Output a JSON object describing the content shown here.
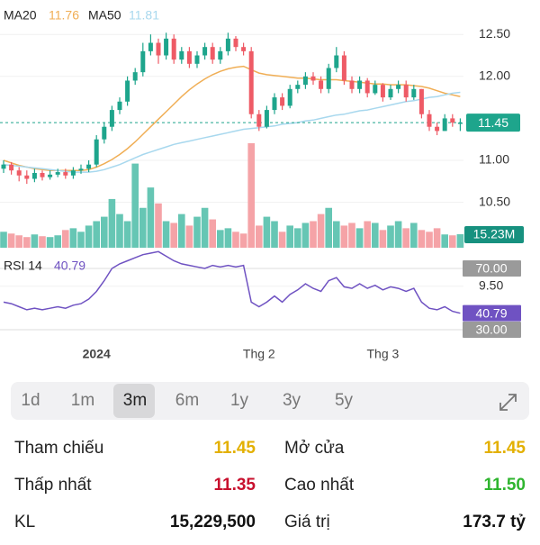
{
  "legend": {
    "ma20_name": "MA20",
    "ma50_name": "MA50",
    "rsi_name": "RSI 14"
  },
  "chart_data": [
    {
      "type": "candlestick",
      "categories": [
        null,
        null,
        null,
        null,
        null,
        null,
        null,
        null,
        null,
        null,
        null,
        null,
        "2024",
        null,
        null,
        null,
        null,
        null,
        null,
        null,
        null,
        null,
        null,
        null,
        null,
        null,
        null,
        null,
        null,
        null,
        null,
        null,
        null,
        "Thg 2",
        null,
        null,
        null,
        null,
        null,
        null,
        null,
        null,
        null,
        null,
        null,
        null,
        null,
        null,
        null,
        "Thg 3",
        null,
        null,
        null,
        null,
        null,
        null,
        null,
        null,
        null,
        null
      ],
      "open": [
        10.9,
        10.95,
        10.88,
        10.82,
        10.78,
        10.85,
        10.8,
        10.83,
        10.86,
        10.82,
        10.88,
        10.9,
        10.95,
        11.25,
        11.4,
        11.6,
        11.7,
        11.95,
        12.05,
        12.3,
        12.4,
        12.25,
        12.45,
        12.2,
        12.3,
        12.15,
        12.25,
        12.35,
        12.2,
        12.3,
        12.45,
        12.35,
        12.3,
        11.55,
        11.4,
        11.6,
        11.75,
        11.65,
        11.85,
        11.9,
        12.0,
        11.95,
        11.85,
        12.1,
        12.25,
        11.95,
        11.85,
        11.95,
        11.8,
        11.9,
        11.75,
        11.85,
        11.9,
        11.75,
        11.85,
        11.55,
        11.4,
        11.35,
        11.5,
        11.45
      ],
      "high": [
        11.0,
        10.98,
        10.92,
        10.88,
        10.9,
        10.88,
        10.88,
        10.9,
        10.9,
        10.92,
        10.95,
        11.0,
        11.3,
        11.45,
        11.65,
        11.75,
        12.0,
        12.1,
        12.4,
        12.5,
        12.45,
        12.52,
        12.5,
        12.35,
        12.35,
        12.3,
        12.4,
        12.4,
        12.35,
        12.52,
        12.48,
        12.4,
        12.35,
        11.6,
        11.65,
        11.8,
        11.8,
        11.9,
        11.95,
        12.05,
        12.05,
        12.0,
        12.15,
        12.35,
        12.3,
        12.0,
        12.0,
        11.98,
        11.95,
        11.92,
        11.9,
        11.95,
        11.95,
        11.9,
        11.85,
        11.6,
        11.45,
        11.55,
        11.55,
        11.5
      ],
      "low": [
        10.85,
        10.83,
        10.75,
        10.72,
        10.74,
        10.76,
        10.77,
        10.8,
        10.78,
        10.78,
        10.84,
        10.86,
        10.92,
        11.2,
        11.35,
        11.55,
        11.65,
        11.9,
        12.0,
        12.25,
        12.15,
        12.2,
        12.15,
        12.15,
        12.1,
        12.1,
        12.2,
        12.15,
        12.15,
        12.25,
        12.3,
        12.25,
        11.5,
        11.35,
        11.38,
        11.55,
        11.6,
        11.62,
        11.8,
        11.85,
        11.9,
        11.8,
        11.8,
        12.05,
        11.9,
        11.8,
        11.8,
        11.75,
        11.78,
        11.7,
        11.72,
        11.8,
        11.7,
        11.72,
        11.5,
        11.35,
        11.3,
        11.35,
        11.4,
        11.35
      ],
      "close": [
        10.95,
        10.88,
        10.82,
        10.78,
        10.85,
        10.8,
        10.83,
        10.86,
        10.82,
        10.88,
        10.9,
        10.95,
        11.25,
        11.4,
        11.6,
        11.7,
        11.95,
        12.05,
        12.3,
        12.4,
        12.25,
        12.45,
        12.2,
        12.3,
        12.15,
        12.25,
        12.35,
        12.2,
        12.3,
        12.45,
        12.35,
        12.3,
        11.55,
        11.4,
        11.6,
        11.75,
        11.65,
        11.85,
        11.9,
        12.0,
        11.95,
        11.85,
        12.1,
        12.25,
        11.95,
        11.85,
        11.95,
        11.8,
        11.9,
        11.75,
        11.85,
        11.9,
        11.75,
        11.85,
        11.55,
        11.4,
        11.35,
        11.5,
        11.45,
        11.45
      ],
      "up_color": "#1ea58c",
      "down_color": "#ee5b66",
      "series": [
        {
          "name": "MA20",
          "color": "#f0ae55",
          "values": [
            11.0,
            10.97,
            10.94,
            10.92,
            10.9,
            10.89,
            10.88,
            10.88,
            10.88,
            10.88,
            10.88,
            10.89,
            10.92,
            10.96,
            11.01,
            11.07,
            11.14,
            11.22,
            11.31,
            11.4,
            11.49,
            11.58,
            11.67,
            11.76,
            11.84,
            11.91,
            11.97,
            12.02,
            12.06,
            12.09,
            12.11,
            12.12,
            12.08,
            12.04,
            12.02,
            12.01,
            12.0,
            11.99,
            11.98,
            11.98,
            11.97,
            11.96,
            11.96,
            11.96,
            11.95,
            11.94,
            11.93,
            11.92,
            11.91,
            11.91,
            11.9,
            11.9,
            11.9,
            11.89,
            11.88,
            11.86,
            11.83,
            11.8,
            11.78,
            11.76
          ]
        },
        {
          "name": "MA50",
          "color": "#a8d8ee",
          "values": [
            10.95,
            10.94,
            10.93,
            10.92,
            10.91,
            10.9,
            10.89,
            10.88,
            10.87,
            10.86,
            10.86,
            10.86,
            10.87,
            10.89,
            10.92,
            10.95,
            10.99,
            11.03,
            11.07,
            11.1,
            11.13,
            11.16,
            11.19,
            11.21,
            11.23,
            11.25,
            11.27,
            11.29,
            11.31,
            11.33,
            11.35,
            11.37,
            11.38,
            11.39,
            11.4,
            11.41,
            11.43,
            11.44,
            11.45,
            11.47,
            11.48,
            11.5,
            11.52,
            11.54,
            11.55,
            11.57,
            11.59,
            11.6,
            11.62,
            11.64,
            11.66,
            11.68,
            11.7,
            11.71,
            11.73,
            11.75,
            11.76,
            11.78,
            11.8,
            11.81
          ]
        }
      ],
      "ylim": [
        8.94,
        12.91
      ],
      "yticks": [
        {
          "value": 9.5,
          "label": "9.50"
        },
        {
          "value": 10.5,
          "label": "10.50"
        },
        {
          "value": 11,
          "label": "11.00"
        },
        {
          "value": 12,
          "label": "12.00"
        },
        {
          "value": 12.5,
          "label": "12.50"
        }
      ],
      "grid": true
    },
    {
      "type": "bar",
      "values": [
        18,
        16,
        14,
        12,
        15,
        13,
        12,
        14,
        20,
        22,
        18,
        25,
        30,
        35,
        55,
        38,
        30,
        95,
        45,
        68,
        50,
        30,
        28,
        38,
        25,
        35,
        45,
        32,
        20,
        22,
        18,
        16,
        118,
        25,
        35,
        30,
        18,
        25,
        22,
        28,
        30,
        38,
        45,
        30,
        25,
        28,
        22,
        30,
        28,
        20,
        25,
        30,
        22,
        28,
        20,
        18,
        22,
        15,
        14,
        15.23
      ],
      "value_labels": [
        null,
        null,
        null,
        null,
        null,
        null,
        null,
        null,
        null,
        null,
        null,
        null,
        null,
        null,
        null,
        null,
        null,
        null,
        null,
        null,
        null,
        null,
        null,
        null,
        null,
        null,
        null,
        null,
        null,
        null,
        null,
        null,
        null,
        null,
        null,
        null,
        null,
        null,
        null,
        null,
        null,
        null,
        null,
        null,
        null,
        null,
        null,
        null,
        null,
        null,
        null,
        null,
        null,
        null,
        null,
        null,
        null,
        null,
        null,
        "15.23M"
      ],
      "up_color": "#66c6b4",
      "down_color": "#f5a3a7",
      "label_color": "#17917f",
      "ylim": [
        0,
        120
      ]
    },
    {
      "type": "line",
      "series": [
        {
          "name": "RSI 14",
          "color": "#6f52c2",
          "values": [
            48,
            47,
            45,
            43,
            44,
            43,
            44,
            45,
            44,
            46,
            47,
            50,
            55,
            62,
            70,
            73,
            75,
            77,
            79,
            80,
            81,
            78,
            75,
            73,
            72,
            71,
            70,
            72,
            71,
            72,
            71,
            72,
            48,
            45,
            48,
            52,
            48,
            53,
            56,
            60,
            57,
            55,
            62,
            64,
            58,
            57,
            60,
            57,
            59,
            56,
            58,
            57,
            55,
            57,
            48,
            44,
            43,
            45,
            42,
            40.79
          ]
        }
      ],
      "ylim": [
        20,
        90
      ],
      "yticks": [
        {
          "value": 70,
          "label": "70.00"
        },
        {
          "value": 30,
          "label": "30.00"
        }
      ],
      "tick_color": "#9a9a9a"
    }
  ],
  "ranges": [
    "1d",
    "1m",
    "3m",
    "6m",
    "1y",
    "3y",
    "5y"
  ],
  "selected_range": 2,
  "stats": [
    [
      {
        "label": "Tham chiếu",
        "value": "11.45",
        "color": "#e3b000"
      },
      {
        "label": "Mở cửa",
        "value": "11.45",
        "color": "#e3b000"
      }
    ],
    [
      {
        "label": "Thấp nhất",
        "value": "11.35",
        "color": "#c8102e"
      },
      {
        "label": "Cao nhất",
        "value": "11.50",
        "color": "#2fb52f"
      }
    ],
    [
      {
        "label": "KL",
        "value": "15,229,500",
        "color": "#111111"
      },
      {
        "label": "Giá trị",
        "value": "173.7 tỷ",
        "color": "#111111"
      }
    ]
  ]
}
